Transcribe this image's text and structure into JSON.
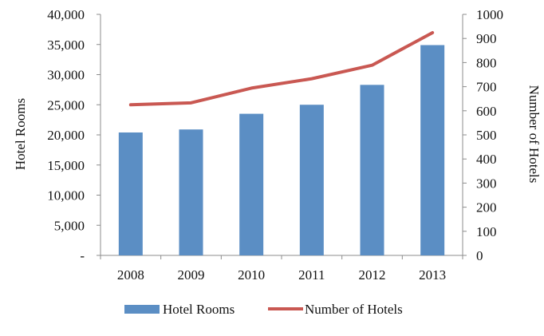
{
  "chart_data": {
    "type": "bar+line",
    "categories": [
      "2008",
      "2009",
      "2010",
      "2011",
      "2012",
      "2013"
    ],
    "series": [
      {
        "name": "Hotel Rooms",
        "type": "bar",
        "axis": "left",
        "color": "#5b8ec4",
        "values": [
          20400,
          20900,
          23500,
          25000,
          28300,
          34900
        ]
      },
      {
        "name": "Number of Hotels",
        "type": "line",
        "axis": "right",
        "color": "#c95852",
        "values": [
          625,
          633,
          694,
          733,
          789,
          924
        ]
      }
    ],
    "y_left": {
      "label": "Hotel Rooms",
      "lim": [
        0,
        40000
      ],
      "ticks": [
        "-",
        "5,000",
        "10,000",
        "15,000",
        "20,000",
        "25,000",
        "30,000",
        "35,000",
        "40,000"
      ]
    },
    "y_right": {
      "label": "Number of Hotels",
      "lim": [
        0,
        1000
      ],
      "ticks": [
        "0",
        "100",
        "200",
        "300",
        "400",
        "500",
        "600",
        "700",
        "800",
        "900",
        "1000"
      ]
    },
    "grid": false,
    "legend_position": "bottom"
  }
}
